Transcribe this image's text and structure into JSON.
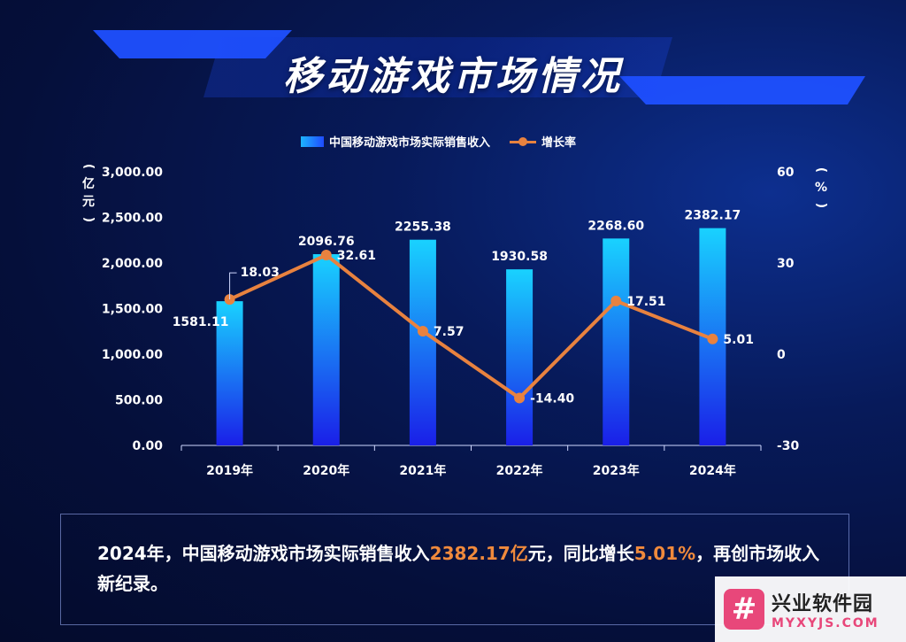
{
  "page": {
    "title": "移动游戏市场情况"
  },
  "chart_data": {
    "type": "bar",
    "categories": [
      "2019年",
      "2020年",
      "2021年",
      "2022年",
      "2023年",
      "2024年"
    ],
    "series": [
      {
        "name": "中国移动游戏市场实际销售收入",
        "type": "bar",
        "axis": "left",
        "values": [
          1581.11,
          2096.76,
          2255.38,
          1930.58,
          2268.6,
          2382.17
        ],
        "labels": [
          "1581.11",
          "2096.76",
          "2255.38",
          "1930.58",
          "2268.60",
          "2382.17"
        ]
      },
      {
        "name": "增长率",
        "type": "line",
        "axis": "right",
        "values": [
          18.03,
          32.61,
          7.57,
          -14.4,
          17.51,
          5.01
        ],
        "labels": [
          "18.03",
          "32.61",
          "7.57",
          "-14.40",
          "17.51",
          "5.01"
        ]
      }
    ],
    "ylabel_left": "（亿元）",
    "ylabel_right": "（%）",
    "ylim_left": [
      0,
      3000
    ],
    "ylim_right": [
      -30,
      60
    ],
    "yticks_left": [
      "0.00",
      "500.00",
      "1,000.00",
      "1,500.00",
      "2,000.00",
      "2,500.00",
      "3,000.00"
    ],
    "yticks_right": [
      "-30",
      "0",
      "30",
      "60"
    ],
    "legend_position": "top-center",
    "grid": false,
    "colors": {
      "bar_top": "#19d2ff",
      "bar_bottom": "#1a1fe8",
      "line": "#e8823f"
    }
  },
  "legend": {
    "bar_label": "中国移动游戏市场实际销售收入",
    "line_label": "增长率"
  },
  "units": {
    "left_open": "(",
    "left_chars": [
      "亿",
      "元"
    ],
    "left_close": ")",
    "right_open": "(",
    "right_chars": [
      "%"
    ],
    "right_close": ")"
  },
  "summary": {
    "part1": "2024年，中国移动游戏市场实际销售收入",
    "highlight1": "2382.17亿",
    "part2": "元，同比增长",
    "highlight2": "5.01%",
    "part3": "，再创市场收入新纪录。"
  },
  "watermark": {
    "logo_glyph": "#",
    "name": "兴业软件园",
    "url": "MYXYJS.COM"
  }
}
